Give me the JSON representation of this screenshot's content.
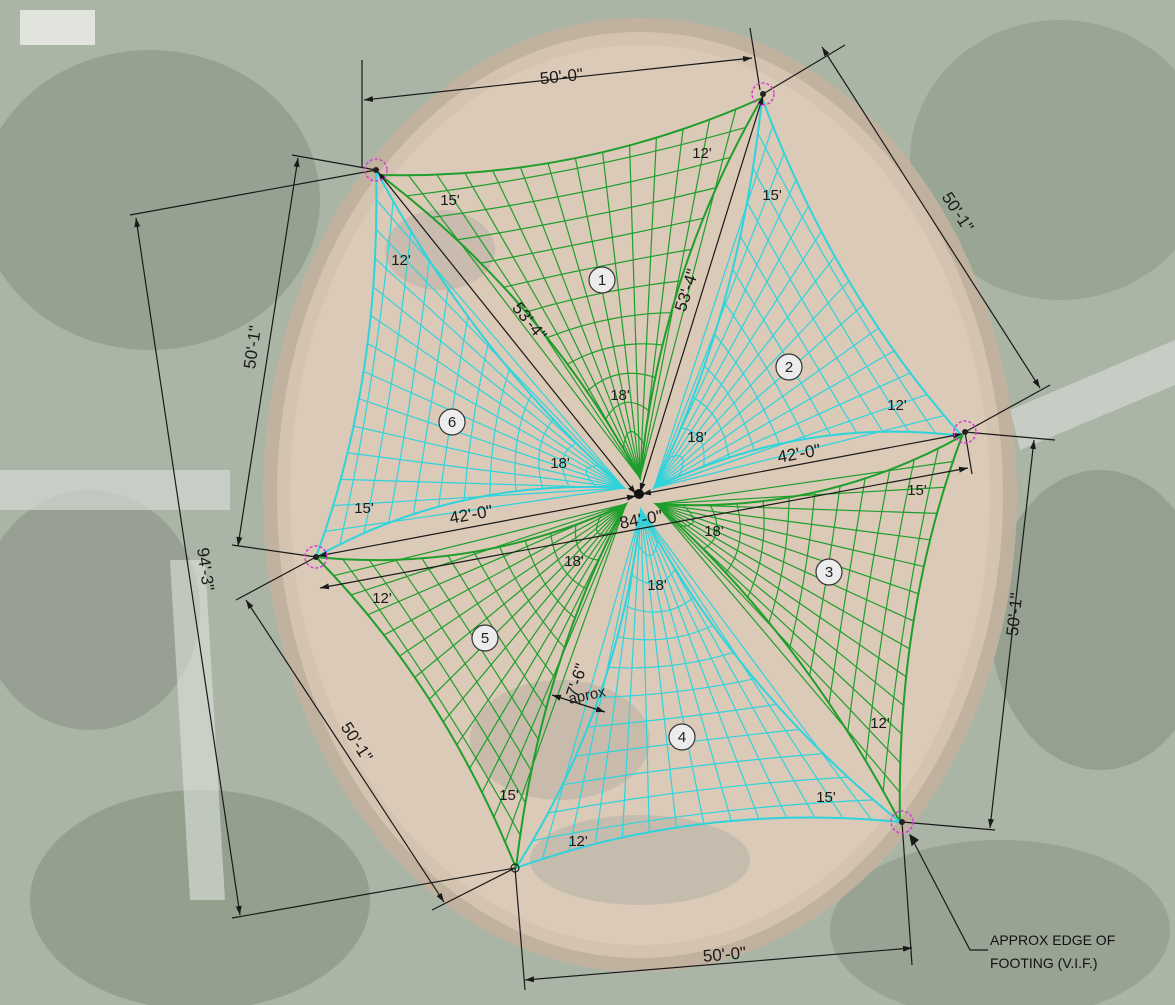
{
  "colors": {
    "green_sail": "#1f9e2c",
    "cyan_sail": "#2fd3dc",
    "dimension_line": "#1a1a1a",
    "footing_marker": "#d63bd6",
    "plaza": "#d9c9b8"
  },
  "sails": [
    {
      "number": "1",
      "color": "green",
      "edges": [
        "15'",
        "12'",
        "18'"
      ]
    },
    {
      "number": "2",
      "color": "cyan",
      "edges": [
        "15'",
        "12'",
        "18'"
      ]
    },
    {
      "number": "3",
      "color": "green",
      "edges": [
        "15'",
        "12'",
        "18'"
      ]
    },
    {
      "number": "4",
      "color": "cyan",
      "edges": [
        "15'",
        "12'",
        "18'"
      ]
    },
    {
      "number": "5",
      "color": "green",
      "edges": [
        "15'",
        "12'",
        "18'"
      ]
    },
    {
      "number": "6",
      "color": "cyan",
      "edges": [
        "15'",
        "12'",
        "18'"
      ]
    }
  ],
  "dimensions": {
    "top": "50'-0\"",
    "top_right": "50'-1\"",
    "right": "50'-1\"",
    "bottom": "50'-0\"",
    "bottom_left": "50'-1\"",
    "left": "50'-1\"",
    "overall": "94'-3\"",
    "diagonal_a": "53'-4\"",
    "diagonal_b": "53'-4\"",
    "center_left": "42'-0\"",
    "center_right": "42'-0\"",
    "center_total": "84'-0\"",
    "gap": "7'-6\"",
    "gap_note": "aprox"
  },
  "callout": {
    "line1": "APPROX EDGE OF",
    "line2": "FOOTING (V.I.F.)"
  }
}
